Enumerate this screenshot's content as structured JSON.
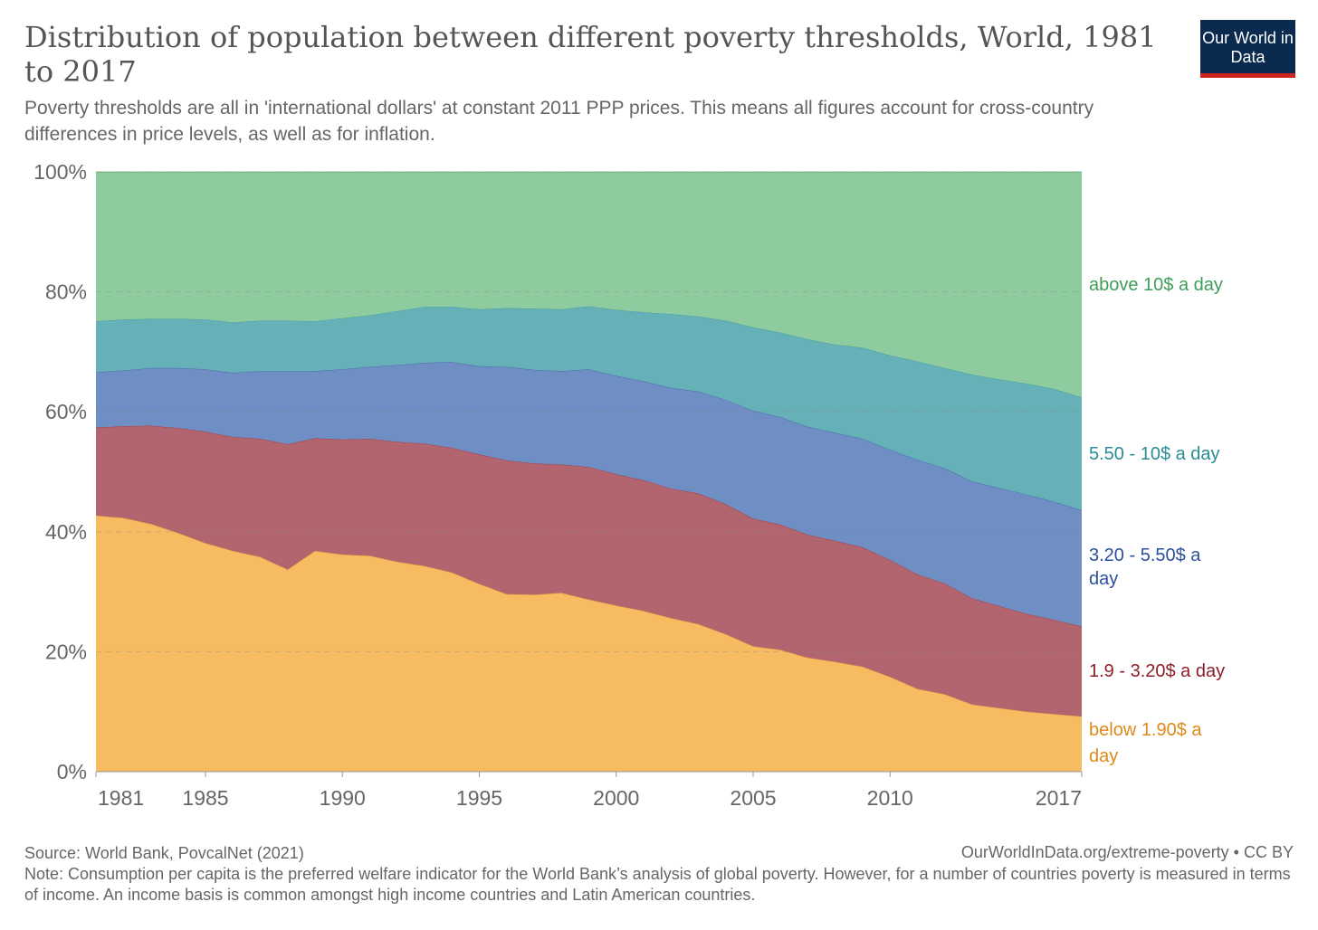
{
  "header": {
    "title": "Distribution of population between different poverty thresholds, World, 1981 to 2017",
    "subtitle": "Poverty thresholds are all in 'international dollars' at constant 2011 PPP prices. This means all figures account for cross-country differences in price levels, as well as for inflation.",
    "logo": "Our World in Data"
  },
  "footer": {
    "source": "Source: World Bank, PovcalNet (2021)",
    "url": "OurWorldInData.org/extreme-poverty • CC BY",
    "note": "Note: Consumption per capita is the preferred welfare indicator for the World Bank’s analysis of global poverty. However, for a number of countries poverty is measured in terms of income. An income basis is common amongst high income countries and Latin American countries."
  },
  "chart_data": {
    "type": "area",
    "stacked": true,
    "title": "",
    "xlabel": "",
    "ylabel": "",
    "ylim": [
      0,
      100
    ],
    "xlim": [
      1981,
      2017
    ],
    "grid": true,
    "legend": "right (inline labels)",
    "yticks": [
      "0%",
      "20%",
      "40%",
      "60%",
      "80%",
      "100%"
    ],
    "xticks": [
      "1981",
      "1985",
      "1990",
      "1995",
      "2000",
      "2005",
      "2010",
      "2017"
    ],
    "x": [
      1981,
      1982,
      1983,
      1984,
      1985,
      1986,
      1987,
      1988,
      1989,
      1990,
      1991,
      1992,
      1993,
      1994,
      1995,
      1996,
      1997,
      1998,
      1999,
      2000,
      2001,
      2002,
      2003,
      2004,
      2005,
      2006,
      2007,
      2008,
      2009,
      2010,
      2011,
      2012,
      2013,
      2014,
      2015,
      2016,
      2017
    ],
    "series": [
      {
        "name": "below 1.90$ a day",
        "color": "#f7bb62",
        "label_color": "#de8a1a",
        "values": [
          42.7,
          42.3,
          41.3,
          39.8,
          38.1,
          36.8,
          35.8,
          33.7,
          36.8,
          36.2,
          36.0,
          35.0,
          34.3,
          33.2,
          31.3,
          29.6,
          29.5,
          29.8,
          28.7,
          27.7,
          26.8,
          25.6,
          24.6,
          22.9,
          20.9,
          20.3,
          19.0,
          18.3,
          17.5,
          15.8,
          13.8,
          12.9,
          11.2,
          10.6,
          10.0,
          9.6,
          9.2
        ]
      },
      {
        "name": "1.9 - 3.20$ a day",
        "color": "#b2656e",
        "label_color": "#8e1e28",
        "values": [
          14.7,
          15.3,
          16.4,
          17.5,
          18.6,
          19.0,
          19.7,
          20.9,
          18.8,
          19.2,
          19.5,
          20.0,
          20.4,
          20.8,
          21.6,
          22.3,
          21.9,
          21.4,
          22.1,
          21.9,
          21.8,
          21.6,
          21.8,
          21.7,
          21.3,
          20.9,
          20.5,
          20.2,
          19.9,
          19.5,
          19.1,
          18.5,
          17.7,
          17.0,
          16.3,
          15.7,
          15.0
        ]
      },
      {
        "name": "3.20 - 5.50$ a day",
        "color": "#6e8ec4",
        "label_color": "#2d4f9c",
        "values": [
          9.2,
          9.3,
          9.6,
          10.0,
          10.4,
          10.7,
          11.3,
          12.2,
          11.2,
          11.7,
          12.0,
          12.8,
          13.5,
          14.3,
          14.7,
          15.6,
          15.6,
          15.6,
          16.3,
          16.4,
          16.5,
          16.8,
          17.0,
          17.4,
          18.0,
          17.9,
          18.0,
          18.0,
          18.1,
          18.4,
          19.1,
          19.2,
          19.5,
          19.7,
          19.9,
          19.7,
          19.4
        ]
      },
      {
        "name": "5.50 - 10$ a day",
        "color": "#66b1b7",
        "label_color": "#2a8d94",
        "values": [
          8.5,
          8.5,
          8.2,
          8.2,
          8.3,
          8.4,
          8.4,
          8.4,
          8.3,
          8.5,
          8.6,
          9.0,
          9.3,
          9.2,
          9.5,
          9.8,
          10.2,
          10.3,
          10.5,
          11.0,
          11.5,
          12.3,
          12.5,
          13.2,
          13.9,
          14.1,
          14.6,
          14.7,
          15.2,
          15.7,
          16.4,
          16.7,
          17.8,
          18.1,
          18.5,
          18.8,
          18.8
        ]
      },
      {
        "name": "above 10$ a day",
        "color": "#8ecb9f",
        "label_color": "#3e9e59",
        "values": [
          24.9,
          24.6,
          24.5,
          24.5,
          24.6,
          25.1,
          24.8,
          24.8,
          24.9,
          24.4,
          23.9,
          23.2,
          22.5,
          22.5,
          22.9,
          22.7,
          22.8,
          22.9,
          22.4,
          23.0,
          23.4,
          23.7,
          24.1,
          24.8,
          25.9,
          26.8,
          27.9,
          28.8,
          29.3,
          30.6,
          31.6,
          32.7,
          33.8,
          34.6,
          35.3,
          36.2,
          37.6
        ]
      }
    ]
  }
}
